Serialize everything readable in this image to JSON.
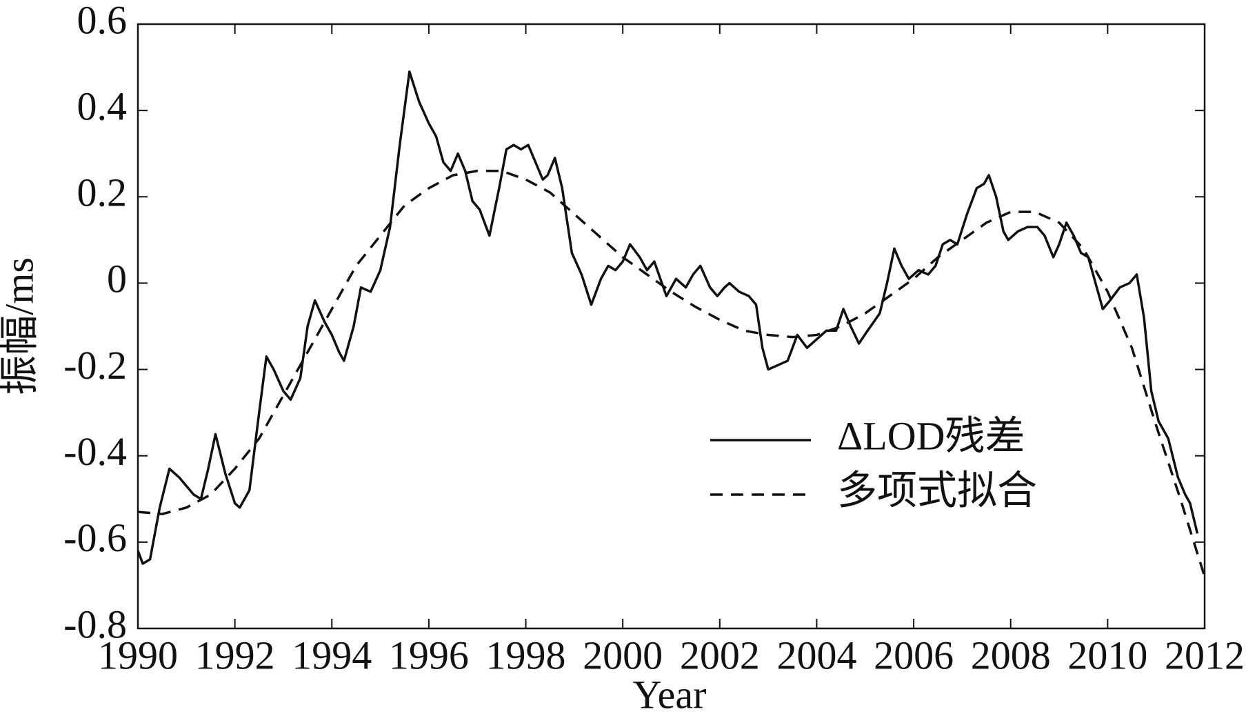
{
  "chart_data": {
    "type": "line",
    "xlabel": "Year",
    "ylabel": "振幅/ms",
    "xlim": [
      1990,
      2012
    ],
    "xticks": [
      1990,
      1992,
      1994,
      1996,
      1998,
      2000,
      2002,
      2004,
      2006,
      2008,
      2010,
      2012
    ],
    "ylim": [
      -0.8,
      0.6
    ],
    "yticks": [
      -0.8,
      -0.6,
      -0.4,
      -0.2,
      0,
      0.2,
      0.4,
      0.6
    ],
    "grid": false,
    "legend": "right",
    "series": [
      {
        "name": "ΔLOD残差",
        "color": "#111111",
        "style": "solid",
        "x": [
          1990.0,
          1990.1,
          1990.25,
          1990.45,
          1990.65,
          1990.85,
          1991.0,
          1991.15,
          1991.3,
          1991.45,
          1991.6,
          1991.8,
          1992.0,
          1992.1,
          1992.3,
          1992.5,
          1992.65,
          1992.8,
          1993.0,
          1993.15,
          1993.35,
          1993.5,
          1993.65,
          1993.85,
          1994.0,
          1994.15,
          1994.25,
          1994.45,
          1994.6,
          1994.8,
          1995.0,
          1995.2,
          1995.4,
          1995.6,
          1995.8,
          1996.0,
          1996.15,
          1996.3,
          1996.45,
          1996.6,
          1996.75,
          1996.9,
          1997.05,
          1997.25,
          1997.45,
          1997.6,
          1997.75,
          1997.9,
          1998.05,
          1998.2,
          1998.35,
          1998.45,
          1998.6,
          1998.75,
          1998.95,
          1999.15,
          1999.35,
          1999.55,
          1999.7,
          1999.85,
          2000.0,
          2000.15,
          2000.35,
          2000.5,
          2000.65,
          2000.9,
          2001.1,
          2001.3,
          2001.45,
          2001.6,
          2001.8,
          2001.95,
          2002.1,
          2002.2,
          2002.4,
          2002.6,
          2002.75,
          2002.88,
          2003.0,
          2003.2,
          2003.4,
          2003.6,
          2003.8,
          2004.0,
          2004.2,
          2004.4,
          2004.55,
          2004.7,
          2004.87,
          2005.05,
          2005.3,
          2005.45,
          2005.6,
          2005.75,
          2005.9,
          2006.1,
          2006.3,
          2006.45,
          2006.6,
          2006.75,
          2006.9,
          2007.1,
          2007.3,
          2007.45,
          2007.55,
          2007.7,
          2007.85,
          2007.95,
          2008.15,
          2008.35,
          2008.55,
          2008.7,
          2008.88,
          2009.0,
          2009.15,
          2009.3,
          2009.45,
          2009.6,
          2009.75,
          2009.9,
          2010.05,
          2010.25,
          2010.45,
          2010.6,
          2010.75,
          2010.9,
          2011.05,
          2011.25,
          2011.45,
          2011.6,
          2011.7,
          2011.85
        ],
        "values": [
          -0.62,
          -0.65,
          -0.64,
          -0.52,
          -0.43,
          -0.45,
          -0.47,
          -0.49,
          -0.5,
          -0.43,
          -0.35,
          -0.44,
          -0.51,
          -0.52,
          -0.48,
          -0.3,
          -0.17,
          -0.2,
          -0.25,
          -0.27,
          -0.22,
          -0.1,
          -0.04,
          -0.09,
          -0.12,
          -0.16,
          -0.18,
          -0.1,
          -0.01,
          -0.02,
          0.03,
          0.13,
          0.32,
          0.49,
          0.42,
          0.37,
          0.34,
          0.28,
          0.26,
          0.3,
          0.26,
          0.19,
          0.17,
          0.11,
          0.22,
          0.31,
          0.32,
          0.31,
          0.32,
          0.28,
          0.24,
          0.25,
          0.29,
          0.22,
          0.07,
          0.02,
          -0.05,
          0.01,
          0.04,
          0.03,
          0.05,
          0.09,
          0.06,
          0.03,
          0.05,
          -0.03,
          0.01,
          -0.01,
          0.02,
          0.04,
          -0.01,
          -0.03,
          -0.01,
          0.0,
          -0.02,
          -0.03,
          -0.05,
          -0.15,
          -0.2,
          -0.19,
          -0.18,
          -0.12,
          -0.15,
          -0.13,
          -0.11,
          -0.11,
          -0.06,
          -0.1,
          -0.14,
          -0.11,
          -0.07,
          0.0,
          0.08,
          0.04,
          0.01,
          0.03,
          0.02,
          0.04,
          0.09,
          0.1,
          0.09,
          0.16,
          0.22,
          0.23,
          0.25,
          0.2,
          0.12,
          0.1,
          0.12,
          0.13,
          0.13,
          0.11,
          0.06,
          0.09,
          0.14,
          0.11,
          0.07,
          0.06,
          0.0,
          -0.06,
          -0.04,
          -0.01,
          0.0,
          0.02,
          -0.08,
          -0.25,
          -0.32,
          -0.36,
          -0.45,
          -0.49,
          -0.51,
          -0.58
        ]
      },
      {
        "name": "多项式拟合",
        "color": "#111111",
        "style": "dashed",
        "x": [
          1990,
          1990.5,
          1991,
          1991.5,
          1992,
          1992.5,
          1993,
          1993.5,
          1994,
          1994.5,
          1995,
          1995.5,
          1996,
          1996.5,
          1997,
          1997.5,
          1998,
          1998.5,
          1999,
          1999.5,
          2000,
          2000.5,
          2001,
          2001.5,
          2002,
          2002.5,
          2003,
          2003.5,
          2004,
          2004.5,
          2005,
          2005.5,
          2006,
          2006.5,
          2007,
          2007.5,
          2008,
          2008.5,
          2009,
          2009.5,
          2010,
          2010.5,
          2011,
          2011.5,
          2012
        ],
        "values": [
          -0.53,
          -0.535,
          -0.52,
          -0.49,
          -0.43,
          -0.36,
          -0.26,
          -0.16,
          -0.06,
          0.04,
          0.11,
          0.18,
          0.22,
          0.25,
          0.26,
          0.26,
          0.24,
          0.21,
          0.16,
          0.11,
          0.06,
          0.02,
          -0.02,
          -0.055,
          -0.085,
          -0.11,
          -0.12,
          -0.125,
          -0.12,
          -0.1,
          -0.07,
          -0.03,
          0.01,
          0.06,
          0.1,
          0.14,
          0.165,
          0.165,
          0.14,
          0.08,
          -0.02,
          -0.15,
          -0.33,
          -0.5,
          -0.68
        ]
      }
    ]
  }
}
